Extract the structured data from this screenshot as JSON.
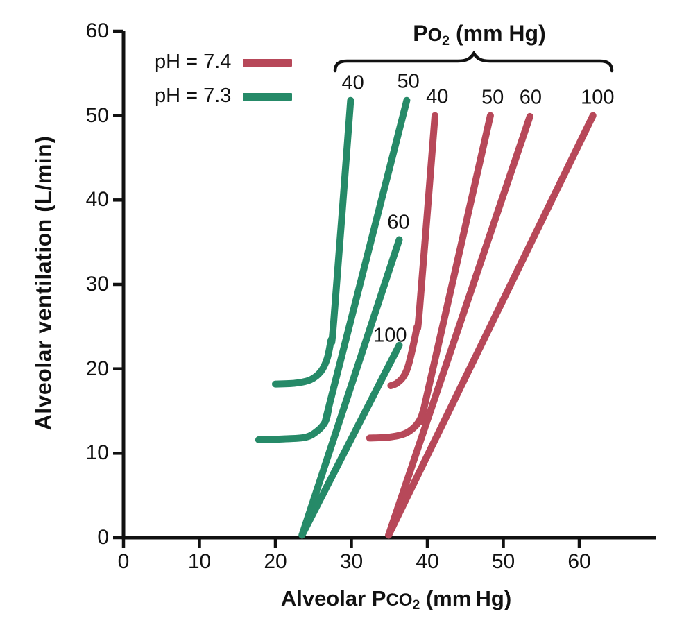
{
  "po2_header_parts": {
    "p": "P",
    "o": "O",
    "sub": "2",
    "rest": " (mm Hg)"
  },
  "x_axis_title_parts": {
    "prefix": "Alveolar P",
    "smallcaps": "CO",
    "sub": "2",
    "rest": " (mm Hg)"
  },
  "y_axis_title": "Alveolar ventilation (L/min)",
  "chart_data": {
    "type": "line",
    "title": "PO2 (mm Hg)",
    "xlabel": "Alveolar PCO2 (mm Hg)",
    "ylabel": "Alveolar ventilation (L/min)",
    "xlim": [
      0,
      70
    ],
    "ylim": [
      0,
      60
    ],
    "x_ticks": [
      0,
      10,
      20,
      30,
      40,
      50,
      60
    ],
    "y_ticks": [
      0,
      10,
      20,
      30,
      40,
      50,
      60
    ],
    "grid": false,
    "legend_position": "top-left",
    "legend": [
      {
        "label": "pH = 7.4",
        "ph": "7.4",
        "color": "#b74859"
      },
      {
        "label": "pH = 7.3",
        "ph": "7.3",
        "color": "#268a68"
      }
    ],
    "series": [
      {
        "name": "pH 7.4, PO2 40",
        "ph": "7.4",
        "po2": "40",
        "points": [
          [
            35.2,
            18.0
          ],
          [
            36.0,
            18.3
          ],
          [
            36.8,
            19.0
          ],
          [
            37.4,
            20.1
          ],
          [
            38.0,
            22.2
          ],
          [
            38.6,
            24.8
          ],
          [
            39.0,
            27.3
          ],
          [
            41.0,
            50.0
          ]
        ],
        "curve_label": {
          "text": "40",
          "x": 41.3,
          "y": 52.2
        }
      },
      {
        "name": "pH 7.4, PO2 50",
        "ph": "7.4",
        "po2": "50",
        "points": [
          [
            32.4,
            11.8
          ],
          [
            34.9,
            11.9
          ],
          [
            37.0,
            12.3
          ],
          [
            38.3,
            13.1
          ],
          [
            39.1,
            14.1
          ],
          [
            39.5,
            15.2
          ],
          [
            39.9,
            16.7
          ],
          [
            48.3,
            50.0
          ]
        ],
        "curve_label": {
          "text": "50",
          "x": 48.6,
          "y": 52.1
        }
      },
      {
        "name": "pH 7.4, PO2 60",
        "ph": "7.4",
        "po2": "60",
        "points": [
          [
            34.9,
            0.3
          ],
          [
            53.5,
            49.9
          ]
        ],
        "curve_label": {
          "text": "60",
          "x": 53.6,
          "y": 52.1
        }
      },
      {
        "name": "pH 7.4, PO2 100",
        "ph": "7.4",
        "po2": "100",
        "points": [
          [
            34.9,
            0.3
          ],
          [
            61.8,
            50.0
          ]
        ],
        "curve_label": {
          "text": "100",
          "x": 62.4,
          "y": 52.1
        }
      },
      {
        "name": "pH 7.3, PO2 40",
        "ph": "7.3",
        "po2": "40",
        "points": [
          [
            20.0,
            18.2
          ],
          [
            22.6,
            18.3
          ],
          [
            24.6,
            18.7
          ],
          [
            26.0,
            19.7
          ],
          [
            26.8,
            21.2
          ],
          [
            27.3,
            23.3
          ],
          [
            27.7,
            25.9
          ],
          [
            29.9,
            51.8
          ]
        ],
        "curve_label": {
          "text": "40",
          "x": 30.2,
          "y": 53.8
        }
      },
      {
        "name": "pH 7.3, PO2 50",
        "ph": "7.3",
        "po2": "50",
        "points": [
          [
            17.8,
            11.6
          ],
          [
            21.2,
            11.7
          ],
          [
            24.0,
            11.9
          ],
          [
            25.6,
            12.7
          ],
          [
            26.6,
            13.8
          ],
          [
            27.0,
            15.2
          ],
          [
            27.4,
            16.8
          ],
          [
            37.3,
            51.8
          ]
        ],
        "curve_label": {
          "text": "50",
          "x": 37.5,
          "y": 54.0
        }
      },
      {
        "name": "pH 7.3, PO2 60",
        "ph": "7.3",
        "po2": "60",
        "points": [
          [
            23.5,
            0.3
          ],
          [
            36.3,
            35.3
          ]
        ],
        "curve_label": {
          "text": "60",
          "x": 36.2,
          "y": 37.3
        }
      },
      {
        "name": "pH 7.3, PO2 100",
        "ph": "7.3",
        "po2": "100",
        "points": [
          [
            23.5,
            0.3
          ],
          [
            36.3,
            22.8
          ]
        ],
        "curve_label": {
          "text": "100",
          "x": 35.1,
          "y": 23.9
        }
      }
    ]
  }
}
